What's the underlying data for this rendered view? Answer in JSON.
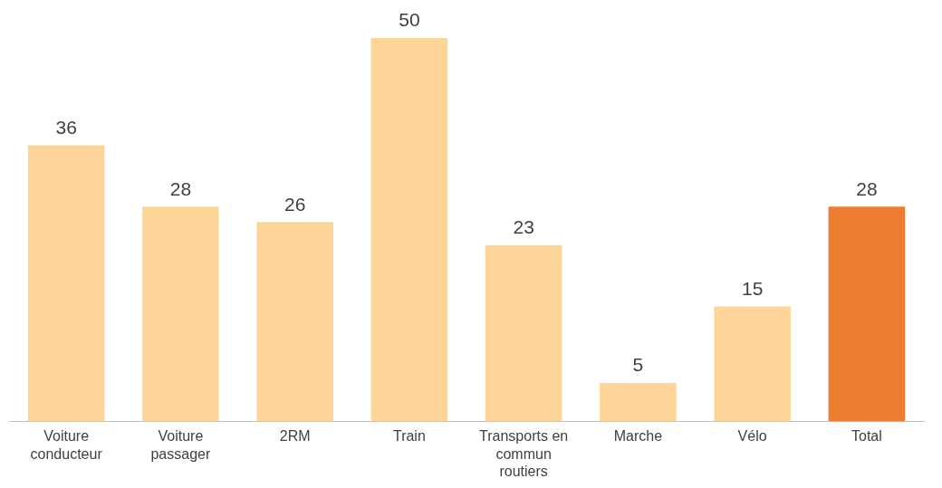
{
  "chart_data": {
    "type": "bar",
    "categories": [
      "Voiture conducteur",
      "Voiture passager",
      "2RM",
      "Train",
      "Transports en commun routiers",
      "Marche",
      "Vélo",
      "Total"
    ],
    "values": [
      36,
      28,
      26,
      50,
      23,
      5,
      15,
      28
    ],
    "colors": [
      "#fdd598",
      "#fdd598",
      "#fdd598",
      "#fdd598",
      "#fdd598",
      "#fdd598",
      "#fdd598",
      "#ed7d31"
    ],
    "data_labels": true,
    "grid": false
  }
}
